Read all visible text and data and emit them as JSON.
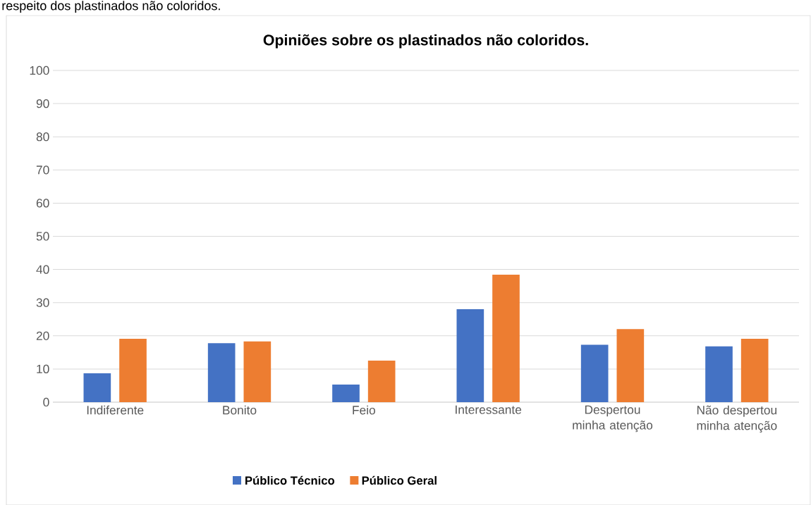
{
  "chart_data": {
    "type": "bar",
    "title": "Opiniões sobre os plastinados não coloridos.",
    "annotations": [
      "respeito dos plastinados não coloridos."
    ],
    "categories": [
      "Indiferente",
      "Bonito",
      "Feio",
      "Interessante",
      "Despertou minha atenção",
      "Não despertou minha atenção"
    ],
    "series": [
      {
        "name": "Público Técnico",
        "color": "#4472c4",
        "values": [
          8.7,
          17.8,
          5.3,
          28.0,
          17.3,
          16.8
        ]
      },
      {
        "name": "Público Geral",
        "color": "#ed7d31",
        "values": [
          19.1,
          18.3,
          12.5,
          38.4,
          22.0,
          19.1
        ]
      }
    ],
    "ylim": [
      0,
      100
    ],
    "yticks": [
      0,
      10,
      20,
      30,
      40,
      50,
      60,
      70,
      80,
      90,
      100
    ],
    "grid": "y",
    "legend": "bottom"
  }
}
